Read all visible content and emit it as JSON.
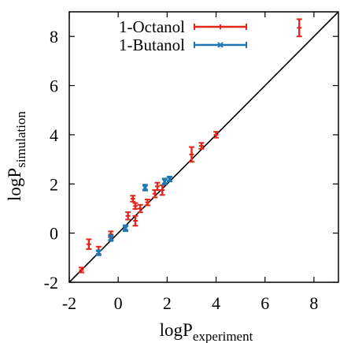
{
  "chart_data": {
    "type": "scatter",
    "title": "",
    "xlabel": {
      "main": "logP",
      "sub": "experiment"
    },
    "ylabel": {
      "main": "logP",
      "sub": "simulation"
    },
    "xlim": [
      -2,
      9
    ],
    "ylim": [
      -2,
      9
    ],
    "xticks": [
      "-2",
      "0",
      "2",
      "4",
      "6",
      "8"
    ],
    "yticks": [
      "-2",
      "0",
      "2",
      "4",
      "6",
      "8"
    ],
    "xtick_values": [
      -2,
      0,
      2,
      4,
      6,
      8
    ],
    "ytick_values": [
      -2,
      0,
      2,
      4,
      6,
      8
    ],
    "grid": false,
    "legend_position": "top-left",
    "reference_line": {
      "x": [
        -2,
        9
      ],
      "y": [
        -2,
        9
      ],
      "color": "#000000"
    },
    "series": [
      {
        "name": "1-Octanol",
        "color": "#e3261c",
        "marker": "plus",
        "points": [
          {
            "x": -1.5,
            "y": -1.5,
            "err": 0.1
          },
          {
            "x": -1.2,
            "y": -0.45,
            "err": 0.2
          },
          {
            "x": -0.8,
            "y": -0.7,
            "err": 0.15
          },
          {
            "x": -0.3,
            "y": -0.05,
            "err": 0.12
          },
          {
            "x": 0.4,
            "y": 0.7,
            "err": 0.15
          },
          {
            "x": 0.6,
            "y": 1.4,
            "err": 0.12
          },
          {
            "x": 0.7,
            "y": 1.1,
            "err": 0.12
          },
          {
            "x": 0.7,
            "y": 0.5,
            "err": 0.2
          },
          {
            "x": 0.9,
            "y": 1.0,
            "err": 0.15
          },
          {
            "x": 1.2,
            "y": 1.25,
            "err": 0.12
          },
          {
            "x": 1.5,
            "y": 1.6,
            "err": 0.15
          },
          {
            "x": 1.6,
            "y": 1.9,
            "err": 0.15
          },
          {
            "x": 1.8,
            "y": 1.75,
            "err": 0.2
          },
          {
            "x": 3.0,
            "y": 3.2,
            "err": 0.3
          },
          {
            "x": 3.4,
            "y": 3.55,
            "err": 0.12
          },
          {
            "x": 4.0,
            "y": 4.0,
            "err": 0.12
          },
          {
            "x": 7.4,
            "y": 8.35,
            "err": 0.35
          }
        ]
      },
      {
        "name": "1-Butanol",
        "color": "#1f77b4",
        "marker": "x",
        "points": [
          {
            "x": -0.8,
            "y": -0.8,
            "err": 0.1
          },
          {
            "x": -0.3,
            "y": -0.2,
            "err": 0.12
          },
          {
            "x": 0.3,
            "y": 0.2,
            "err": 0.12
          },
          {
            "x": 1.1,
            "y": 1.85,
            "err": 0.12
          },
          {
            "x": 1.9,
            "y": 2.1,
            "err": 0.12
          },
          {
            "x": 2.1,
            "y": 2.2,
            "err": 0.1
          }
        ]
      }
    ]
  }
}
